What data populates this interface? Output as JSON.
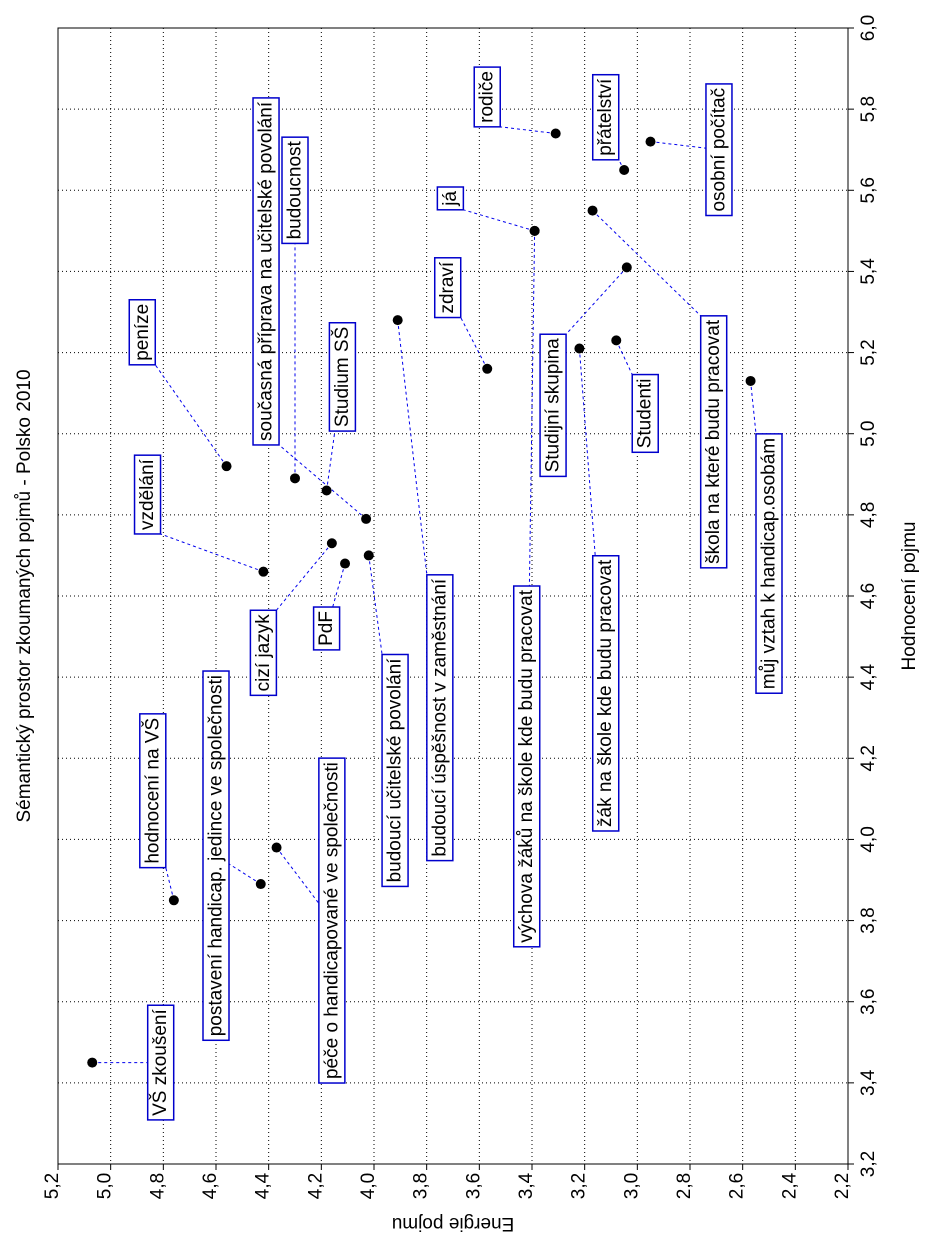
{
  "chart_data": {
    "type": "scatter",
    "title": "Sémantický prostor zkoumaných pojmů - Polsko 2010",
    "xlabel": "Hodnocení pojmu",
    "ylabel": "Energie pojmu",
    "xlim": [
      3.2,
      6.0
    ],
    "ylim": [
      2.2,
      5.2
    ],
    "x_ticks": [
      "3,2",
      "3,4",
      "3,6",
      "3,8",
      "4,0",
      "4,2",
      "4,4",
      "4,6",
      "4,8",
      "5,0",
      "5,2",
      "5,4",
      "5,6",
      "5,8",
      "6,0"
    ],
    "y_ticks": [
      "2,2",
      "2,4",
      "2,6",
      "2,8",
      "3,0",
      "3,2",
      "3,4",
      "3,6",
      "3,8",
      "4,0",
      "4,2",
      "4,4",
      "4,6",
      "4,8",
      "5,0",
      "5,2"
    ],
    "grid": true,
    "points": [
      {
        "label": "VŠ zkoušení",
        "x": 3.45,
        "y": 5.07,
        "lx": 3.45,
        "ly": 4.81
      },
      {
        "label": "hodnocení na VŠ",
        "x": 3.85,
        "y": 4.76,
        "lx": 4.12,
        "ly": 4.84
      },
      {
        "label": "postavení handicap. jedince ve společnosti",
        "x": 3.89,
        "y": 4.43,
        "lx": 3.96,
        "ly": 4.6
      },
      {
        "label": "péče o handicapované ve společnosti",
        "x": 3.98,
        "y": 4.37,
        "lx": 3.8,
        "ly": 4.16
      },
      {
        "label": "vzdělání",
        "x": 4.66,
        "y": 4.42,
        "lx": 4.85,
        "ly": 4.86
      },
      {
        "label": "cizí jazyk",
        "x": 4.73,
        "y": 4.16,
        "lx": 4.46,
        "ly": 4.42
      },
      {
        "label": "peníze",
        "x": 4.92,
        "y": 4.56,
        "lx": 5.25,
        "ly": 4.88
      },
      {
        "label": "PdF",
        "x": 4.68,
        "y": 4.11,
        "lx": 4.52,
        "ly": 4.18
      },
      {
        "label": "budoucí učitelské povolání",
        "x": 4.7,
        "y": 4.02,
        "lx": 4.17,
        "ly": 3.92
      },
      {
        "label": "Studium SŠ",
        "x": 4.86,
        "y": 4.18,
        "lx": 5.14,
        "ly": 4.12
      },
      {
        "label": "budoucnost",
        "x": 4.89,
        "y": 4.3,
        "lx": 5.6,
        "ly": 4.3
      },
      {
        "label": "současná příprava na učitelské povolání",
        "x": 4.79,
        "y": 4.03,
        "lx": 5.4,
        "ly": 4.41
      },
      {
        "label": "budoucí úspěšnost v zaměstnání",
        "x": 5.28,
        "y": 3.91,
        "lx": 4.3,
        "ly": 3.75
      },
      {
        "label": "zdraví",
        "x": 5.16,
        "y": 3.57,
        "lx": 5.36,
        "ly": 3.72
      },
      {
        "label": "výchova žáků na škole kde budu pracovat",
        "x": 5.5,
        "y": 3.39,
        "lx": 4.18,
        "ly": 3.42
      },
      {
        "label": "já",
        "x": 5.5,
        "y": 3.39,
        "lx": 5.58,
        "ly": 3.71
      },
      {
        "label": "rodiče",
        "x": 5.74,
        "y": 3.31,
        "lx": 5.83,
        "ly": 3.57
      },
      {
        "label": "Studijní skupina",
        "x": 5.41,
        "y": 3.04,
        "lx": 5.07,
        "ly": 3.32
      },
      {
        "label": "žák na škole kde budu pracovat",
        "x": 5.21,
        "y": 3.22,
        "lx": 4.36,
        "ly": 3.12
      },
      {
        "label": "Studenti",
        "x": 5.23,
        "y": 3.08,
        "lx": 5.05,
        "ly": 2.97
      },
      {
        "label": "přátelství",
        "x": 5.65,
        "y": 3.05,
        "lx": 5.78,
        "ly": 3.12
      },
      {
        "label": "škola na které budu pracovat",
        "x": 5.55,
        "y": 3.17,
        "lx": 4.98,
        "ly": 2.71
      },
      {
        "label": "osobní počítač",
        "x": 5.72,
        "y": 2.95,
        "lx": 5.7,
        "ly": 2.69
      },
      {
        "label": "můj vztah k handicap.osobám",
        "x": 5.13,
        "y": 2.57,
        "lx": 4.68,
        "ly": 2.5
      }
    ]
  }
}
